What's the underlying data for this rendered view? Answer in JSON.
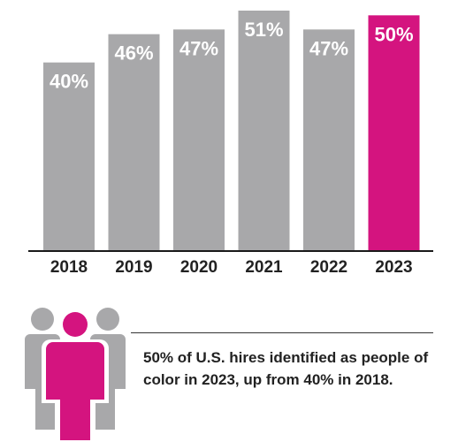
{
  "chart_data": {
    "type": "bar",
    "categories": [
      "2018",
      "2019",
      "2020",
      "2021",
      "2022",
      "2023"
    ],
    "values": [
      40,
      46,
      47,
      51,
      47,
      50
    ],
    "value_labels": [
      "40%",
      "46%",
      "47%",
      "51%",
      "47%",
      "50%"
    ],
    "title": "",
    "xlabel": "",
    "ylabel": "",
    "ylim": [
      0,
      51
    ],
    "grid": false,
    "colors": {
      "default_bar": "#a8a8aa",
      "highlight_bar": "#d4147f",
      "axis": "#1a1a1a"
    },
    "highlight_index": 5
  },
  "callout": {
    "text": "50% of U.S. hires identified as people of color in 2023, up from 40% in 2018.",
    "icon": "people-group-icon"
  }
}
